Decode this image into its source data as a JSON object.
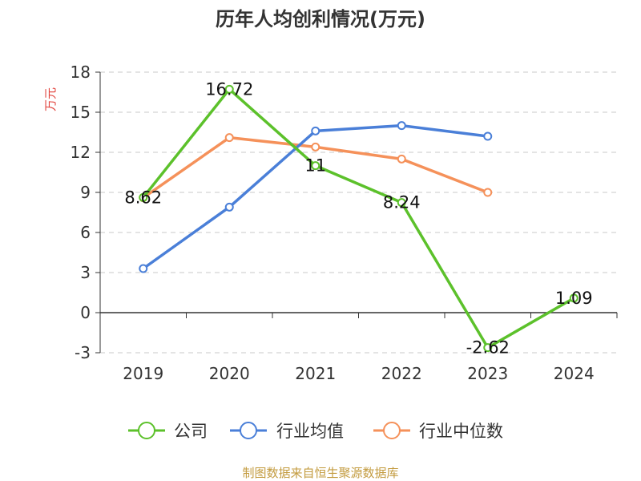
{
  "chart_data": {
    "type": "line",
    "title": "历年人均创利情况(万元)",
    "ylabel": "万元",
    "xlabel": "",
    "categories": [
      "2019",
      "2020",
      "2021",
      "2022",
      "2023",
      "2024"
    ],
    "ylim": [
      -3,
      18
    ],
    "yticks": [
      18,
      15,
      12,
      9,
      6,
      3,
      0,
      -3
    ],
    "grid": true,
    "legend_position": "bottom",
    "series": [
      {
        "name": "公司",
        "color": "#5cc12b",
        "values": [
          8.62,
          16.72,
          11,
          8.24,
          -2.62,
          1.09
        ],
        "labels": [
          "8.62",
          "16.72",
          "11",
          "8.24",
          "-2.62",
          "1.09"
        ]
      },
      {
        "name": "行业均值",
        "color": "#4a7fd8",
        "values": [
          3.3,
          7.9,
          13.6,
          14.0,
          13.2,
          null
        ]
      },
      {
        "name": "行业中位数",
        "color": "#f5915a",
        "values": [
          8.6,
          13.1,
          12.4,
          11.5,
          9.0,
          null
        ]
      }
    ]
  },
  "footer": {
    "source": "制图数据来自恒生聚源数据库"
  }
}
